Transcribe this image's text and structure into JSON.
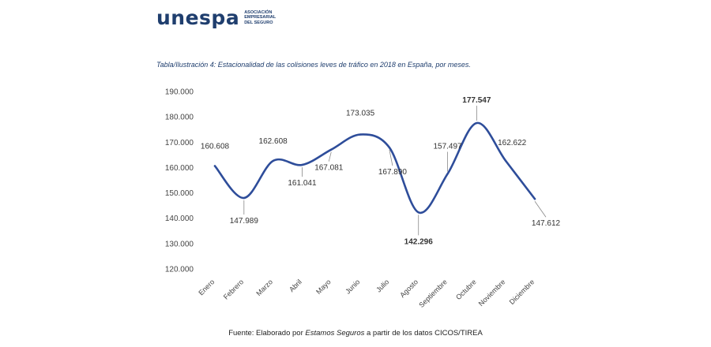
{
  "logo": {
    "wordmark": "unespa",
    "subline_1": "ASOCIACIÓN",
    "subline_2": "EMPRESARIAL",
    "subline_3": "DEL SEGURO"
  },
  "caption": "Tabla/Ilustración 4: Estacionalidad de las colisiones leves de tráfico en 2018 en España, por meses.",
  "source": {
    "prefix": "Fuente: Elaborado por ",
    "emphasis": "Estamos Seguros",
    "suffix": " a partir de los datos CICOS/TIREA"
  },
  "chart_data": {
    "type": "line",
    "title": "",
    "xlabel": "",
    "ylabel": "",
    "categories": [
      "Enero",
      "Febrero",
      "Marzo",
      "Abril",
      "Mayo",
      "Junio",
      "Julio",
      "Agosto",
      "Septiembre",
      "Octubre",
      "Noviembre",
      "Diciembre"
    ],
    "series": [
      {
        "values": [
          160608,
          147989,
          162608,
          161041,
          167081,
          173035,
          167890,
          142296,
          157497,
          177547,
          162622,
          147612
        ],
        "data_labels": [
          "160.608",
          "147.989",
          "162.608",
          "161.041",
          "167.081",
          "173.035",
          "167.890",
          "142.296",
          "157.497",
          "177.547",
          "162.622",
          "147.612"
        ],
        "bold_labels": [
          7,
          9
        ],
        "color": "#2e4d9a"
      }
    ],
    "ylim": [
      120000,
      190000
    ],
    "yticks": [
      120000,
      130000,
      140000,
      150000,
      160000,
      170000,
      180000,
      190000
    ],
    "ytick_labels": [
      "120.000",
      "130.000",
      "140.000",
      "150.000",
      "160.000",
      "170.000",
      "180.000",
      "190.000"
    ],
    "grid": false,
    "smooth": true
  }
}
